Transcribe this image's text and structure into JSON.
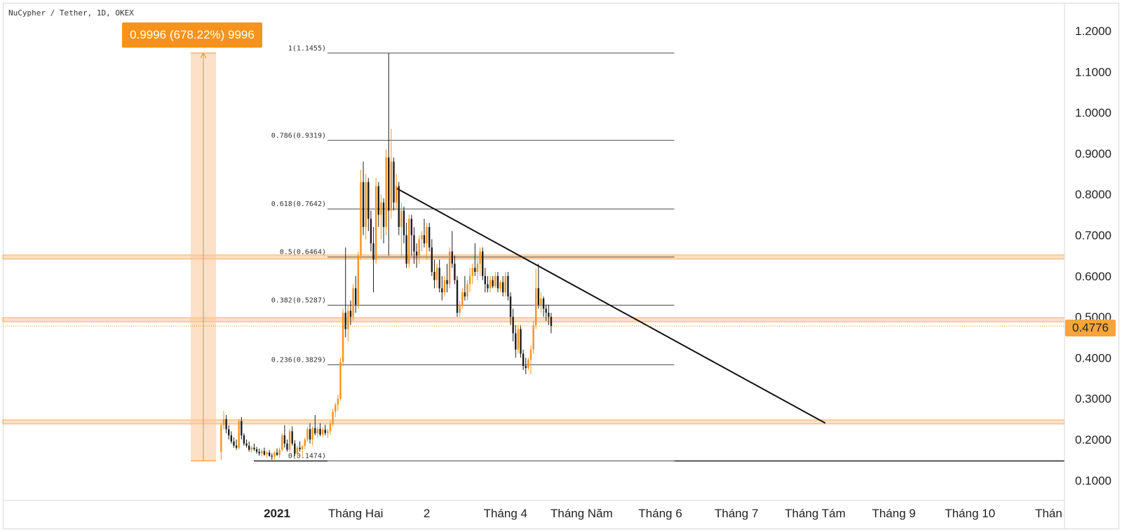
{
  "header": {
    "symbol": "NuCypher / Tether, 1D, OKEX"
  },
  "measure": {
    "label": "0.9996 (678.22%) 9996"
  },
  "last_price": "0.4776",
  "colors": {
    "up": "#f7931a",
    "down": "#1e1e1e",
    "zone": "#f9c79a",
    "zone_line": "#f7931a",
    "line": "#111111",
    "fib": "#4a4a4a"
  },
  "chart_data": {
    "type": "candlestick",
    "title": "NuCypher / Tether, 1D, OKEX",
    "ylim": [
      0.06,
      1.25
    ],
    "y_ticks": [
      {
        "v": 1.2,
        "label": "1.2000"
      },
      {
        "v": 1.1,
        "label": "1.1000"
      },
      {
        "v": 1.0,
        "label": "1.0000"
      },
      {
        "v": 0.9,
        "label": "0.9000"
      },
      {
        "v": 0.8,
        "label": "0.8000"
      },
      {
        "v": 0.7,
        "label": "0.7000"
      },
      {
        "v": 0.6,
        "label": "0.6000"
      },
      {
        "v": 0.5,
        "label": "0.5000"
      },
      {
        "v": 0.4,
        "label": "0.4000"
      },
      {
        "v": 0.3,
        "label": "0.3000"
      },
      {
        "v": 0.2,
        "label": "0.2000"
      },
      {
        "v": 0.1,
        "label": "0.1000"
      }
    ],
    "x_ticks": [
      {
        "d": "2021-01-01",
        "label": "2021",
        "bold": true
      },
      {
        "d": "2021-02-01",
        "label": "Tháng Hai"
      },
      {
        "d": "2021-03-01",
        "label": "2"
      },
      {
        "d": "2021-04-01",
        "label": "Tháng 4"
      },
      {
        "d": "2021-05-01",
        "label": "Tháng Năm"
      },
      {
        "d": "2021-06-01",
        "label": "Tháng 6"
      },
      {
        "d": "2021-07-01",
        "label": "Tháng 7"
      },
      {
        "d": "2021-08-01",
        "label": "Tháng Tám"
      },
      {
        "d": "2021-09-01",
        "label": "Tháng 9"
      },
      {
        "d": "2021-10-01",
        "label": "Tháng 10"
      },
      {
        "d": "2021-11-01",
        "label": "Thán"
      }
    ],
    "candles": [
      {
        "d": "2020-12-10",
        "o": 0.17,
        "h": 0.24,
        "l": 0.15,
        "c": 0.235
      },
      {
        "d": "2020-12-11",
        "o": 0.235,
        "h": 0.27,
        "l": 0.225,
        "c": 0.25
      },
      {
        "d": "2020-12-12",
        "o": 0.25,
        "h": 0.26,
        "l": 0.215,
        "c": 0.225
      },
      {
        "d": "2020-12-13",
        "o": 0.225,
        "h": 0.235,
        "l": 0.2,
        "c": 0.21
      },
      {
        "d": "2020-12-14",
        "o": 0.21,
        "h": 0.22,
        "l": 0.19,
        "c": 0.195
      },
      {
        "d": "2020-12-15",
        "o": 0.195,
        "h": 0.205,
        "l": 0.18,
        "c": 0.185
      },
      {
        "d": "2020-12-16",
        "o": 0.185,
        "h": 0.2,
        "l": 0.175,
        "c": 0.18
      },
      {
        "d": "2020-12-17",
        "o": 0.18,
        "h": 0.25,
        "l": 0.175,
        "c": 0.245
      },
      {
        "d": "2020-12-18",
        "o": 0.245,
        "h": 0.255,
        "l": 0.2,
        "c": 0.21
      },
      {
        "d": "2020-12-19",
        "o": 0.21,
        "h": 0.215,
        "l": 0.185,
        "c": 0.19
      },
      {
        "d": "2020-12-20",
        "o": 0.19,
        "h": 0.2,
        "l": 0.18,
        "c": 0.185
      },
      {
        "d": "2020-12-21",
        "o": 0.185,
        "h": 0.195,
        "l": 0.17,
        "c": 0.175
      },
      {
        "d": "2020-12-22",
        "o": 0.175,
        "h": 0.185,
        "l": 0.168,
        "c": 0.18
      },
      {
        "d": "2020-12-23",
        "o": 0.18,
        "h": 0.19,
        "l": 0.172,
        "c": 0.176
      },
      {
        "d": "2020-12-24",
        "o": 0.176,
        "h": 0.182,
        "l": 0.165,
        "c": 0.17
      },
      {
        "d": "2020-12-25",
        "o": 0.17,
        "h": 0.178,
        "l": 0.16,
        "c": 0.166
      },
      {
        "d": "2020-12-26",
        "o": 0.166,
        "h": 0.176,
        "l": 0.158,
        "c": 0.172
      },
      {
        "d": "2020-12-27",
        "o": 0.172,
        "h": 0.18,
        "l": 0.16,
        "c": 0.163
      },
      {
        "d": "2020-12-28",
        "o": 0.163,
        "h": 0.172,
        "l": 0.155,
        "c": 0.168
      },
      {
        "d": "2020-12-29",
        "o": 0.168,
        "h": 0.174,
        "l": 0.158,
        "c": 0.16
      },
      {
        "d": "2020-12-30",
        "o": 0.16,
        "h": 0.166,
        "l": 0.15,
        "c": 0.158
      },
      {
        "d": "2020-12-31",
        "o": 0.158,
        "h": 0.172,
        "l": 0.15,
        "c": 0.168
      },
      {
        "d": "2021-01-01",
        "o": 0.168,
        "h": 0.178,
        "l": 0.16,
        "c": 0.162
      },
      {
        "d": "2021-01-02",
        "o": 0.162,
        "h": 0.18,
        "l": 0.155,
        "c": 0.175
      },
      {
        "d": "2021-01-03",
        "o": 0.175,
        "h": 0.215,
        "l": 0.17,
        "c": 0.21
      },
      {
        "d": "2021-01-04",
        "o": 0.21,
        "h": 0.235,
        "l": 0.18,
        "c": 0.19
      },
      {
        "d": "2021-01-05",
        "o": 0.19,
        "h": 0.2,
        "l": 0.17,
        "c": 0.175
      },
      {
        "d": "2021-01-06",
        "o": 0.175,
        "h": 0.225,
        "l": 0.17,
        "c": 0.22
      },
      {
        "d": "2021-01-07",
        "o": 0.22,
        "h": 0.232,
        "l": 0.185,
        "c": 0.19
      },
      {
        "d": "2021-01-08",
        "o": 0.19,
        "h": 0.198,
        "l": 0.16,
        "c": 0.165
      },
      {
        "d": "2021-01-09",
        "o": 0.165,
        "h": 0.185,
        "l": 0.155,
        "c": 0.18
      },
      {
        "d": "2021-01-10",
        "o": 0.18,
        "h": 0.195,
        "l": 0.17,
        "c": 0.176
      },
      {
        "d": "2021-01-11",
        "o": 0.176,
        "h": 0.186,
        "l": 0.158,
        "c": 0.184
      },
      {
        "d": "2021-01-12",
        "o": 0.184,
        "h": 0.205,
        "l": 0.176,
        "c": 0.2
      },
      {
        "d": "2021-01-13",
        "o": 0.2,
        "h": 0.23,
        "l": 0.195,
        "c": 0.225
      },
      {
        "d": "2021-01-14",
        "o": 0.225,
        "h": 0.24,
        "l": 0.19,
        "c": 0.2
      },
      {
        "d": "2021-01-15",
        "o": 0.2,
        "h": 0.232,
        "l": 0.185,
        "c": 0.228
      },
      {
        "d": "2021-01-16",
        "o": 0.228,
        "h": 0.26,
        "l": 0.21,
        "c": 0.215
      },
      {
        "d": "2021-01-17",
        "o": 0.215,
        "h": 0.232,
        "l": 0.205,
        "c": 0.226
      },
      {
        "d": "2021-01-18",
        "o": 0.226,
        "h": 0.24,
        "l": 0.208,
        "c": 0.212
      },
      {
        "d": "2021-01-19",
        "o": 0.212,
        "h": 0.23,
        "l": 0.205,
        "c": 0.224
      },
      {
        "d": "2021-01-20",
        "o": 0.224,
        "h": 0.236,
        "l": 0.21,
        "c": 0.216
      },
      {
        "d": "2021-01-21",
        "o": 0.216,
        "h": 0.226,
        "l": 0.204,
        "c": 0.22
      },
      {
        "d": "2021-01-22",
        "o": 0.22,
        "h": 0.245,
        "l": 0.212,
        "c": 0.238
      },
      {
        "d": "2021-01-23",
        "o": 0.238,
        "h": 0.275,
        "l": 0.232,
        "c": 0.268
      },
      {
        "d": "2021-01-24",
        "o": 0.268,
        "h": 0.29,
        "l": 0.255,
        "c": 0.285
      },
      {
        "d": "2021-01-25",
        "o": 0.285,
        "h": 0.31,
        "l": 0.27,
        "c": 0.3
      },
      {
        "d": "2021-01-26",
        "o": 0.3,
        "h": 0.4,
        "l": 0.295,
        "c": 0.39
      },
      {
        "d": "2021-01-27",
        "o": 0.39,
        "h": 0.52,
        "l": 0.38,
        "c": 0.51
      },
      {
        "d": "2021-01-28",
        "o": 0.51,
        "h": 0.67,
        "l": 0.45,
        "c": 0.47
      },
      {
        "d": "2021-01-29",
        "o": 0.47,
        "h": 0.53,
        "l": 0.44,
        "c": 0.515
      },
      {
        "d": "2021-01-30",
        "o": 0.515,
        "h": 0.54,
        "l": 0.48,
        "c": 0.5
      },
      {
        "d": "2021-01-31",
        "o": 0.5,
        "h": 0.58,
        "l": 0.49,
        "c": 0.57
      },
      {
        "d": "2021-02-01",
        "o": 0.57,
        "h": 0.6,
        "l": 0.51,
        "c": 0.53
      },
      {
        "d": "2021-02-02",
        "o": 0.53,
        "h": 0.66,
        "l": 0.52,
        "c": 0.65
      },
      {
        "d": "2021-02-03",
        "o": 0.65,
        "h": 0.86,
        "l": 0.64,
        "c": 0.83
      },
      {
        "d": "2021-02-04",
        "o": 0.83,
        "h": 0.88,
        "l": 0.7,
        "c": 0.72
      },
      {
        "d": "2021-02-05",
        "o": 0.72,
        "h": 0.85,
        "l": 0.69,
        "c": 0.83
      },
      {
        "d": "2021-02-06",
        "o": 0.83,
        "h": 0.84,
        "l": 0.71,
        "c": 0.74
      },
      {
        "d": "2021-02-07",
        "o": 0.74,
        "h": 0.76,
        "l": 0.66,
        "c": 0.68
      },
      {
        "d": "2021-02-08",
        "o": 0.68,
        "h": 0.72,
        "l": 0.56,
        "c": 0.64
      },
      {
        "d": "2021-02-09",
        "o": 0.64,
        "h": 0.84,
        "l": 0.63,
        "c": 0.82
      },
      {
        "d": "2021-02-10",
        "o": 0.82,
        "h": 0.83,
        "l": 0.72,
        "c": 0.75
      },
      {
        "d": "2021-02-11",
        "o": 0.75,
        "h": 0.8,
        "l": 0.69,
        "c": 0.78
      },
      {
        "d": "2021-02-12",
        "o": 0.78,
        "h": 0.79,
        "l": 0.68,
        "c": 0.72
      },
      {
        "d": "2021-02-13",
        "o": 0.72,
        "h": 0.91,
        "l": 0.7,
        "c": 0.89
      },
      {
        "d": "2021-02-14",
        "o": 0.89,
        "h": 1.145,
        "l": 0.65,
        "c": 0.76
      },
      {
        "d": "2021-02-15",
        "o": 0.76,
        "h": 0.96,
        "l": 0.74,
        "c": 0.88
      },
      {
        "d": "2021-02-16",
        "o": 0.88,
        "h": 0.89,
        "l": 0.76,
        "c": 0.78
      },
      {
        "d": "2021-02-17",
        "o": 0.78,
        "h": 0.85,
        "l": 0.76,
        "c": 0.82
      },
      {
        "d": "2021-02-18",
        "o": 0.82,
        "h": 0.83,
        "l": 0.7,
        "c": 0.72
      },
      {
        "d": "2021-02-19",
        "o": 0.72,
        "h": 0.78,
        "l": 0.65,
        "c": 0.76
      },
      {
        "d": "2021-02-20",
        "o": 0.76,
        "h": 0.77,
        "l": 0.68,
        "c": 0.7
      },
      {
        "d": "2021-02-21",
        "o": 0.7,
        "h": 0.73,
        "l": 0.62,
        "c": 0.63
      },
      {
        "d": "2021-02-22",
        "o": 0.63,
        "h": 0.75,
        "l": 0.62,
        "c": 0.74
      },
      {
        "d": "2021-02-23",
        "o": 0.74,
        "h": 0.75,
        "l": 0.65,
        "c": 0.7
      },
      {
        "d": "2021-02-24",
        "o": 0.7,
        "h": 0.72,
        "l": 0.63,
        "c": 0.66
      },
      {
        "d": "2021-02-25",
        "o": 0.66,
        "h": 0.68,
        "l": 0.62,
        "c": 0.65
      },
      {
        "d": "2021-02-26",
        "o": 0.65,
        "h": 0.7,
        "l": 0.63,
        "c": 0.69
      },
      {
        "d": "2021-02-27",
        "o": 0.69,
        "h": 0.71,
        "l": 0.66,
        "c": 0.7
      },
      {
        "d": "2021-02-28",
        "o": 0.7,
        "h": 0.74,
        "l": 0.67,
        "c": 0.68
      },
      {
        "d": "2021-03-01",
        "o": 0.68,
        "h": 0.73,
        "l": 0.64,
        "c": 0.72
      },
      {
        "d": "2021-03-02",
        "o": 0.72,
        "h": 0.73,
        "l": 0.66,
        "c": 0.67
      },
      {
        "d": "2021-03-03",
        "o": 0.67,
        "h": 0.69,
        "l": 0.6,
        "c": 0.61
      },
      {
        "d": "2021-03-04",
        "o": 0.61,
        "h": 0.64,
        "l": 0.57,
        "c": 0.59
      },
      {
        "d": "2021-03-05",
        "o": 0.59,
        "h": 0.63,
        "l": 0.57,
        "c": 0.62
      },
      {
        "d": "2021-03-06",
        "o": 0.62,
        "h": 0.64,
        "l": 0.56,
        "c": 0.57
      },
      {
        "d": "2021-03-07",
        "o": 0.57,
        "h": 0.6,
        "l": 0.54,
        "c": 0.56
      },
      {
        "d": "2021-03-08",
        "o": 0.56,
        "h": 0.6,
        "l": 0.55,
        "c": 0.59
      },
      {
        "d": "2021-03-09",
        "o": 0.59,
        "h": 0.63,
        "l": 0.56,
        "c": 0.58
      },
      {
        "d": "2021-03-10",
        "o": 0.58,
        "h": 0.67,
        "l": 0.57,
        "c": 0.66
      },
      {
        "d": "2021-03-11",
        "o": 0.66,
        "h": 0.71,
        "l": 0.62,
        "c": 0.63
      },
      {
        "d": "2021-03-12",
        "o": 0.63,
        "h": 0.65,
        "l": 0.58,
        "c": 0.59
      },
      {
        "d": "2021-03-13",
        "o": 0.59,
        "h": 0.6,
        "l": 0.5,
        "c": 0.51
      },
      {
        "d": "2021-03-14",
        "o": 0.51,
        "h": 0.54,
        "l": 0.5,
        "c": 0.53
      },
      {
        "d": "2021-03-15",
        "o": 0.53,
        "h": 0.57,
        "l": 0.52,
        "c": 0.56
      },
      {
        "d": "2021-03-16",
        "o": 0.56,
        "h": 0.6,
        "l": 0.54,
        "c": 0.55
      },
      {
        "d": "2021-03-17",
        "o": 0.55,
        "h": 0.59,
        "l": 0.54,
        "c": 0.58
      },
      {
        "d": "2021-03-18",
        "o": 0.58,
        "h": 0.62,
        "l": 0.56,
        "c": 0.6
      },
      {
        "d": "2021-03-19",
        "o": 0.6,
        "h": 0.63,
        "l": 0.58,
        "c": 0.62
      },
      {
        "d": "2021-03-20",
        "o": 0.62,
        "h": 0.68,
        "l": 0.6,
        "c": 0.61
      },
      {
        "d": "2021-03-21",
        "o": 0.61,
        "h": 0.64,
        "l": 0.59,
        "c": 0.63
      },
      {
        "d": "2021-03-22",
        "o": 0.63,
        "h": 0.67,
        "l": 0.6,
        "c": 0.66
      },
      {
        "d": "2021-03-23",
        "o": 0.66,
        "h": 0.67,
        "l": 0.59,
        "c": 0.6
      },
      {
        "d": "2021-03-24",
        "o": 0.6,
        "h": 0.62,
        "l": 0.56,
        "c": 0.58
      },
      {
        "d": "2021-03-25",
        "o": 0.58,
        "h": 0.6,
        "l": 0.56,
        "c": 0.57
      },
      {
        "d": "2021-03-26",
        "o": 0.57,
        "h": 0.6,
        "l": 0.56,
        "c": 0.59
      },
      {
        "d": "2021-03-27",
        "o": 0.59,
        "h": 0.6,
        "l": 0.57,
        "c": 0.575
      },
      {
        "d": "2021-03-28",
        "o": 0.575,
        "h": 0.61,
        "l": 0.57,
        "c": 0.6
      },
      {
        "d": "2021-03-29",
        "o": 0.6,
        "h": 0.61,
        "l": 0.56,
        "c": 0.57
      },
      {
        "d": "2021-03-30",
        "o": 0.57,
        "h": 0.59,
        "l": 0.56,
        "c": 0.585
      },
      {
        "d": "2021-03-31",
        "o": 0.585,
        "h": 0.6,
        "l": 0.55,
        "c": 0.56
      },
      {
        "d": "2021-04-01",
        "o": 0.56,
        "h": 0.61,
        "l": 0.55,
        "c": 0.6
      },
      {
        "d": "2021-04-02",
        "o": 0.6,
        "h": 0.61,
        "l": 0.54,
        "c": 0.55
      },
      {
        "d": "2021-04-03",
        "o": 0.55,
        "h": 0.56,
        "l": 0.48,
        "c": 0.5
      },
      {
        "d": "2021-04-04",
        "o": 0.5,
        "h": 0.52,
        "l": 0.44,
        "c": 0.46
      },
      {
        "d": "2021-04-05",
        "o": 0.46,
        "h": 0.48,
        "l": 0.4,
        "c": 0.42
      },
      {
        "d": "2021-04-06",
        "o": 0.42,
        "h": 0.48,
        "l": 0.41,
        "c": 0.47
      },
      {
        "d": "2021-04-07",
        "o": 0.47,
        "h": 0.48,
        "l": 0.4,
        "c": 0.41
      },
      {
        "d": "2021-04-08",
        "o": 0.41,
        "h": 0.42,
        "l": 0.37,
        "c": 0.38
      },
      {
        "d": "2021-04-09",
        "o": 0.38,
        "h": 0.4,
        "l": 0.36,
        "c": 0.375
      },
      {
        "d": "2021-04-10",
        "o": 0.375,
        "h": 0.4,
        "l": 0.37,
        "c": 0.395
      },
      {
        "d": "2021-04-11",
        "o": 0.395,
        "h": 0.43,
        "l": 0.36,
        "c": 0.42
      },
      {
        "d": "2021-04-12",
        "o": 0.42,
        "h": 0.49,
        "l": 0.41,
        "c": 0.48
      },
      {
        "d": "2021-04-13",
        "o": 0.48,
        "h": 0.62,
        "l": 0.47,
        "c": 0.57
      },
      {
        "d": "2021-04-14",
        "o": 0.57,
        "h": 0.63,
        "l": 0.52,
        "c": 0.53
      },
      {
        "d": "2021-04-15",
        "o": 0.53,
        "h": 0.56,
        "l": 0.51,
        "c": 0.545
      },
      {
        "d": "2021-04-16",
        "o": 0.545,
        "h": 0.55,
        "l": 0.5,
        "c": 0.52
      },
      {
        "d": "2021-04-17",
        "o": 0.52,
        "h": 0.53,
        "l": 0.49,
        "c": 0.51
      },
      {
        "d": "2021-04-18",
        "o": 0.51,
        "h": 0.53,
        "l": 0.48,
        "c": 0.5
      },
      {
        "d": "2021-04-19",
        "o": 0.5,
        "h": 0.51,
        "l": 0.46,
        "c": 0.478
      }
    ],
    "fibonacci": [
      {
        "label": "1(1.1455)",
        "v": 1.1455
      },
      {
        "label": "0.786(0.9319)",
        "v": 0.9319
      },
      {
        "label": "0.618(0.7642)",
        "v": 0.7642
      },
      {
        "label": "0.5(0.6464)",
        "v": 0.6464
      },
      {
        "label": "0.382(0.5287)",
        "v": 0.5287
      },
      {
        "label": "0.236(0.3829)",
        "v": 0.3829
      },
      {
        "label": "0(0.1474)",
        "v": 0.1474
      }
    ],
    "fib_range": {
      "from": "2021-01-01",
      "to": "2021-06-01"
    },
    "horizontal_zones": [
      {
        "from": 0.6415,
        "to": 0.6515
      },
      {
        "from": 0.488,
        "to": 0.498
      },
      {
        "from": 0.238,
        "to": 0.248
      }
    ],
    "horizontal_ray": {
      "v": 0.1474,
      "from": "2021-06-01"
    },
    "trendline": {
      "from": {
        "d": "2021-02-17",
        "v": 0.815
      },
      "to": {
        "d": "2021-08-05",
        "v": 0.24
      }
    },
    "price_range_measure": {
      "d1": "2020-11-28",
      "d2": "2020-12-08",
      "low": 0.1474,
      "high": 1.1455
    },
    "last_price_value": 0.4776
  }
}
